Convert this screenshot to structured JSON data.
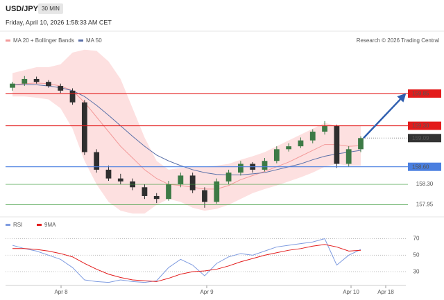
{
  "header": {
    "symbol": "USD/JPY",
    "timeframe": "30 MIN",
    "timestamp": "Friday, April 10, 2026 1:58:33 AM CET",
    "copyright": "Research © 2026 Trading Central"
  },
  "chart_data": [
    {
      "type": "candlestick",
      "up_color": "#3d7a46",
      "down_color": "#2f2f2f",
      "open": [
        159.95,
        160.02,
        160.1,
        160.05,
        159.98,
        159.9,
        159.7,
        158.85,
        158.55,
        158.4,
        158.35,
        158.25,
        158.1,
        158.05,
        158.3,
        158.45,
        158.2,
        158.0,
        158.35,
        158.5,
        158.65,
        158.55,
        158.7,
        158.9,
        158.95,
        159.05,
        159.2,
        159.3,
        158.65,
        158.9
      ],
      "high": [
        160.05,
        160.15,
        160.14,
        160.08,
        160.02,
        159.94,
        159.74,
        158.9,
        158.62,
        158.48,
        158.4,
        158.3,
        158.15,
        158.36,
        158.5,
        158.5,
        158.25,
        158.4,
        158.55,
        158.7,
        158.68,
        158.75,
        158.95,
        159.0,
        159.1,
        159.24,
        159.38,
        159.32,
        158.95,
        159.12
      ],
      "low": [
        159.9,
        159.98,
        160.02,
        159.95,
        159.86,
        159.66,
        158.8,
        158.5,
        158.36,
        158.3,
        158.2,
        158.05,
        157.98,
        158.02,
        158.25,
        158.15,
        157.9,
        157.97,
        158.3,
        158.45,
        158.5,
        158.52,
        158.66,
        158.86,
        158.92,
        159.0,
        159.15,
        158.58,
        158.6,
        158.85
      ],
      "close": [
        160.02,
        160.1,
        160.05,
        159.98,
        159.9,
        159.7,
        158.85,
        158.55,
        158.4,
        158.35,
        158.25,
        158.1,
        158.05,
        158.3,
        158.45,
        158.2,
        158.0,
        158.35,
        158.5,
        158.65,
        158.55,
        158.7,
        158.9,
        158.95,
        159.05,
        159.2,
        159.3,
        158.65,
        158.9,
        159.09
      ],
      "series": [
        {
          "name": "MA 20 + Bollinger Bands",
          "color": "#f39a9a",
          "band_color": "#fde0e0",
          "values": [
            160.0,
            160.02,
            160.03,
            160.02,
            159.98,
            159.9,
            159.7,
            159.45,
            159.2,
            158.95,
            158.75,
            158.55,
            158.4,
            158.3,
            158.28,
            158.25,
            158.22,
            158.22,
            158.28,
            158.38,
            158.45,
            158.52,
            158.6,
            158.68,
            158.78,
            158.88,
            158.98,
            158.98,
            158.95,
            158.96
          ],
          "upper": [
            160.2,
            160.25,
            160.3,
            160.3,
            160.35,
            160.55,
            160.6,
            160.58,
            160.4,
            160.1,
            159.6,
            159.1,
            158.7,
            158.55,
            158.58,
            158.6,
            158.6,
            158.62,
            158.65,
            158.72,
            158.78,
            158.85,
            158.95,
            159.05,
            159.15,
            159.25,
            159.35,
            159.3,
            159.3,
            159.3
          ],
          "lower": [
            159.8,
            159.8,
            159.78,
            159.75,
            159.6,
            159.25,
            158.7,
            158.3,
            158.0,
            157.85,
            157.8,
            157.8,
            157.95,
            158.05,
            158.0,
            157.9,
            157.85,
            157.88,
            157.95,
            158.05,
            158.15,
            158.22,
            158.28,
            158.35,
            158.42,
            158.5,
            158.6,
            158.65,
            158.62,
            158.62
          ]
        },
        {
          "name": "MA 50",
          "color": "#5a70a8",
          "values": [
            160.0,
            160.0,
            160.0,
            159.98,
            159.95,
            159.9,
            159.8,
            159.65,
            159.48,
            159.3,
            159.12,
            158.95,
            158.8,
            158.7,
            158.62,
            158.55,
            158.5,
            158.47,
            158.46,
            158.46,
            158.48,
            158.5,
            158.55,
            158.6,
            158.65,
            158.72,
            158.78,
            158.82,
            158.85,
            158.88
          ]
        }
      ],
      "ylim": [
        157.78,
        160.62
      ],
      "levels": [
        {
          "value": 159.85,
          "color": "#e31b1b",
          "style": "box"
        },
        {
          "value": 159.3,
          "label": "159.30",
          "color": "#e31b1b",
          "style": "box"
        },
        {
          "value": 159.09,
          "color": "#333333",
          "style": "current"
        },
        {
          "value": 158.6,
          "label": "158.60",
          "color": "#4a7fe0",
          "style": "box"
        },
        {
          "value": 158.3,
          "label": "158.30",
          "color": "#3a9a3a",
          "style": "text"
        },
        {
          "value": 157.95,
          "color": "#3a9a3a",
          "style": "text"
        }
      ]
    },
    {
      "type": "line",
      "series": [
        {
          "name": "RSI",
          "color": "#7e9be0",
          "values": [
            62,
            58,
            55,
            50,
            45,
            35,
            20,
            18,
            17,
            20,
            18,
            17,
            19,
            35,
            45,
            38,
            25,
            40,
            48,
            52,
            50,
            55,
            60,
            62,
            64,
            66,
            70,
            38,
            50,
            57
          ]
        },
        {
          "name": "9MA",
          "color": "#e31b1b",
          "values": [
            58,
            58,
            57,
            55,
            52,
            48,
            40,
            33,
            27,
            23,
            20,
            19,
            18,
            22,
            27,
            30,
            31,
            33,
            37,
            42,
            46,
            50,
            53,
            56,
            58,
            61,
            63,
            60,
            55,
            56
          ]
        }
      ],
      "ylim": [
        15,
        78
      ],
      "yticks": [
        70,
        50,
        30
      ],
      "x_labels": [
        "Apr 8",
        "Apr 9",
        "Apr 10",
        "Apr 18"
      ]
    }
  ]
}
